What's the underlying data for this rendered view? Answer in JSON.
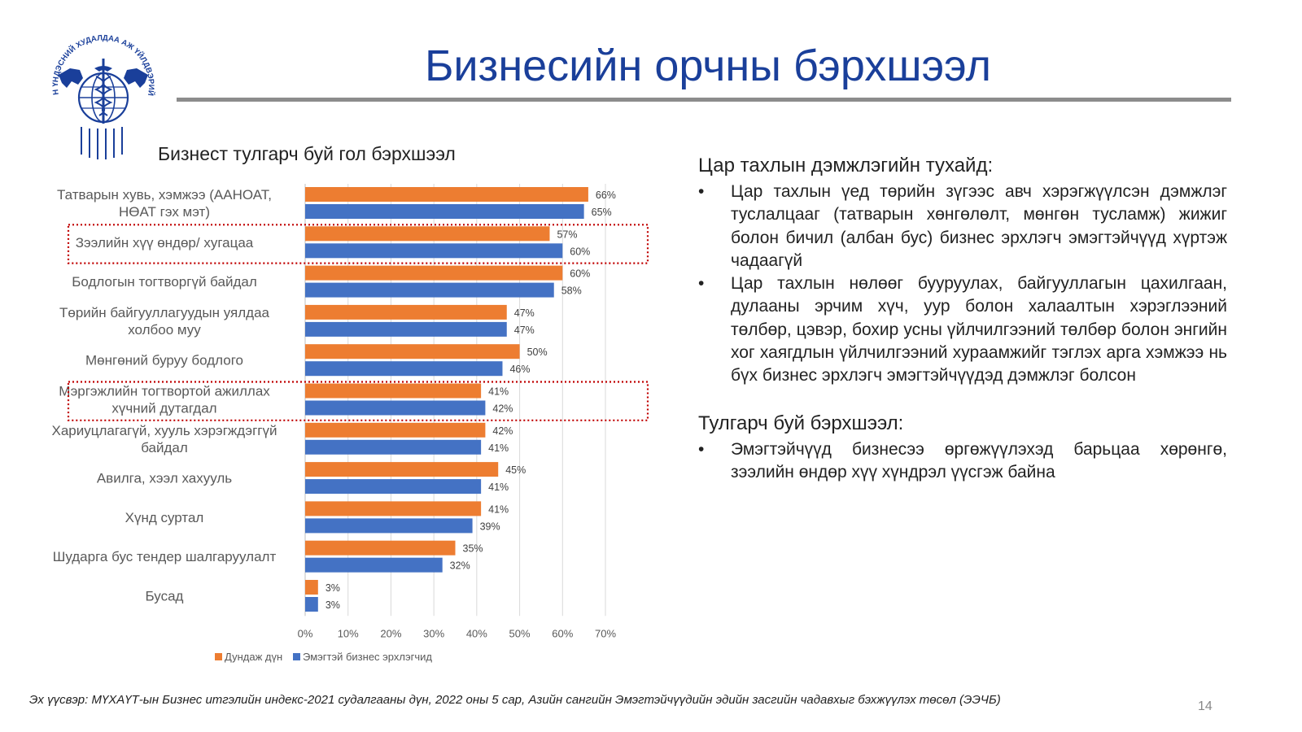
{
  "header": {
    "title": "Бизнесийн орчны бэрхшээл",
    "logo_text": "МОНГОЛЫН ҮНДЭСНИЙ ХУДАЛДАА АЖ ҮЙЛДВЭРИЙН ТАНХИМ"
  },
  "chart_data": {
    "type": "bar",
    "orientation": "horizontal",
    "title": "Бизнест тулгарч буй гол бэрхшээл",
    "categories": [
      [
        "Татварын хувь, хэмжээ (ААНОАТ,",
        "НӨАТ гэх мэт)"
      ],
      [
        "Зээлийн хүү өндөр/ хугацаа"
      ],
      [
        "Бодлогын тогтворгүй байдал"
      ],
      [
        "Төрийн байгууллагуудын уялдаа",
        "холбоо муу"
      ],
      [
        "Мөнгөний буруу бодлого"
      ],
      [
        "Мэргэжлийн тогтвортой ажиллах",
        "хүчний дутагдал"
      ],
      [
        "Хариуцлагагүй, хууль хэрэгждэггүй",
        "байдал"
      ],
      [
        "Авилга, хээл хахууль"
      ],
      [
        "Хүнд суртал"
      ],
      [
        "Шударга бус тендер шалгаруулалт"
      ],
      [
        "Бусад"
      ]
    ],
    "series": [
      {
        "name": "Дундаж дүн",
        "color": "#ed7d31",
        "values": [
          66,
          57,
          60,
          47,
          50,
          41,
          42,
          45,
          41,
          35,
          3
        ]
      },
      {
        "name": "Эмэгтэй бизнес эрхлэгчид",
        "color": "#4472c4",
        "values": [
          65,
          60,
          58,
          47,
          46,
          42,
          41,
          41,
          39,
          32,
          3
        ]
      }
    ],
    "xlim": [
      0,
      70
    ],
    "xticks": [
      "0%",
      "10%",
      "20%",
      "30%",
      "40%",
      "50%",
      "60%",
      "70%"
    ],
    "highlighted_categories": [
      1,
      5
    ],
    "highlight_color": "#c00000",
    "grid": true,
    "legend_position": "bottom"
  },
  "panel": {
    "section1_heading": "Цар тахлын дэмжлэгийн тухайд:",
    "section1_items": [
      "Цар тахлын үед төрийн зүгээс авч хэрэгжүүлсэн дэмжлэг туслалцааг (татварын хөнгөлөлт, мөнгөн тусламж) жижиг болон бичил (албан бус) бизнес эрхлэгч эмэгтэйчүүд хүртэж чадаагүй",
      "Цар тахлын нөлөөг бууруулах, байгууллагын цахилгаан, дулааны эрчим хүч, уур болон халаалтын хэрэглээний төлбөр, цэвэр, бохир усны үйлчилгээний төлбөр болон энгийн хог хаягдлын үйлчилгээний хураамжийг тэглэх арга хэмжээ нь бүх бизнес эрхлэгч эмэгтэйчүүдэд дэмжлэг болсон"
    ],
    "section2_heading": "Тулгарч буй бэрхшээл:",
    "section2_items": [
      "Эмэгтэйчүүд бизнесээ өргөжүүлэхэд барьцаа хөрөнгө, зээлийн өндөр хүү хүндрэл үүсгэж байна"
    ],
    "bullet": "•"
  },
  "footer": {
    "source": "Эх үүсвэр: МҮХАҮТ-ын Бизнес итгэлийн индекс-2021 судалгааны дүн, 2022 оны 5 сар, Азийн сангийн Эмэгтэйчүүдийн эдийн засгийн чадавхыг бэхжүүлэх төсөл (ЭЭЧБ)",
    "page_number": "14"
  },
  "colors": {
    "title": "#1a3f9a",
    "rule": "#8c8c8c"
  }
}
